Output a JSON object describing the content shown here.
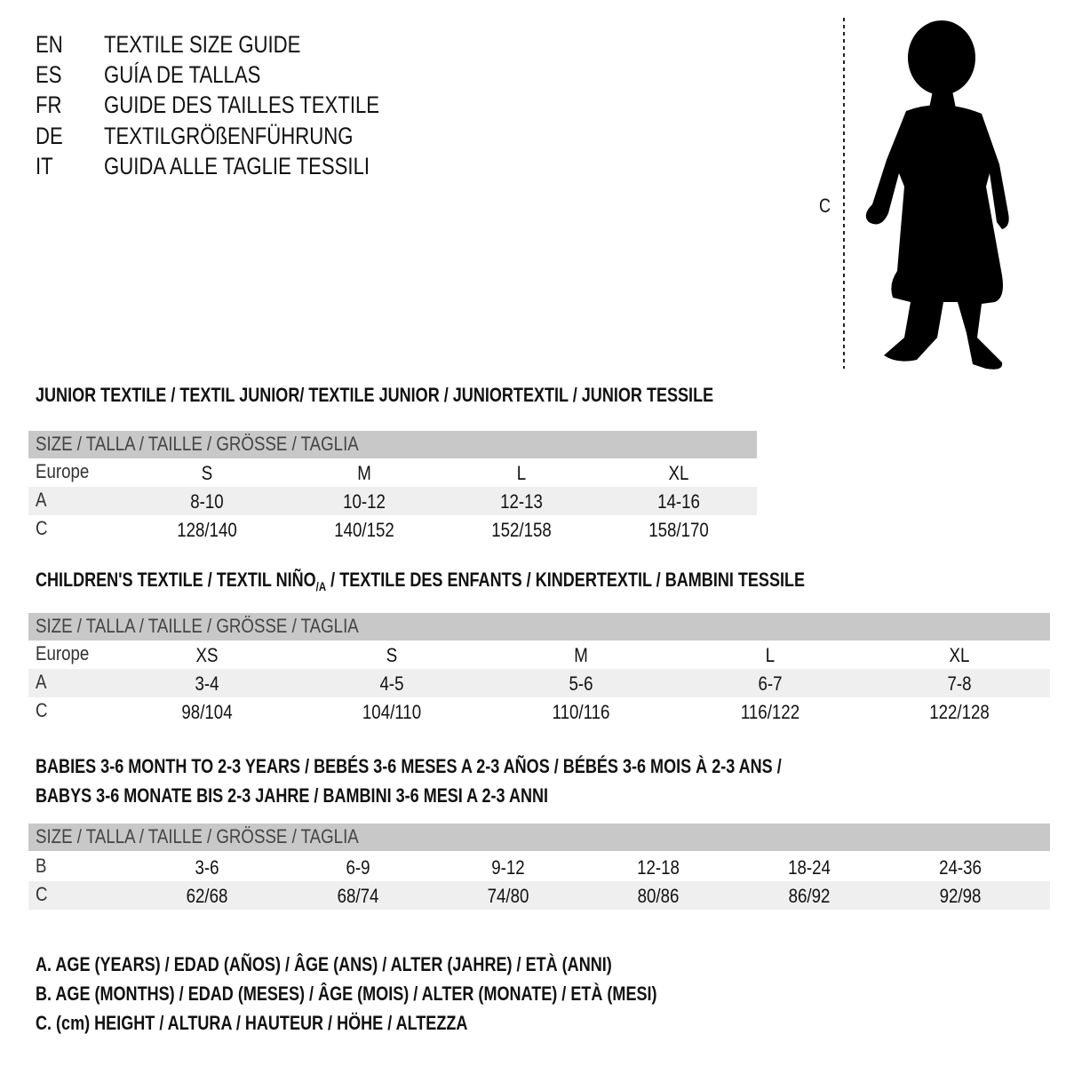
{
  "title_lines": [
    {
      "code": "EN",
      "text": "TEXTILE SIZE GUIDE"
    },
    {
      "code": "ES",
      "text": "GUÍA DE TALLAS"
    },
    {
      "code": "FR",
      "text": "GUIDE DES TAILLES TEXTILE"
    },
    {
      "code": "DE",
      "text": "TEXTILGRÖßENFÜHRUNG"
    },
    {
      "code": "IT",
      "text": "GUIDA ALLE TAGLIE TESSILI"
    }
  ],
  "figure": {
    "measure_label": "C"
  },
  "junior": {
    "heading": "JUNIOR TEXTILE / TEXTIL JUNIOR/ TEXTILE JUNIOR / JUNIORTEXTIL / JUNIOR TESSILE",
    "header": "SIZE / TALLA / TAILLE / GRÖSSE / TAGLIA",
    "rows": [
      {
        "label": "Europe",
        "values": [
          "S",
          "M",
          "L",
          "XL"
        ]
      },
      {
        "label": "A",
        "values": [
          "8-10",
          "10-12",
          "12-13",
          "14-16"
        ]
      },
      {
        "label": "C",
        "values": [
          "128/140",
          "140/152",
          "152/158",
          "158/170"
        ]
      }
    ]
  },
  "children": {
    "heading_pre": "CHILDREN'S TEXTILE / TEXTIL NIÑO",
    "heading_sub": "/A",
    "heading_post": " / TEXTILE DES ENFANTS / KINDERTEXTIL / BAMBINI TESSILE",
    "header": "SIZE / TALLA / TAILLE / GRÖSSE / TAGLIA",
    "rows": [
      {
        "label": "Europe",
        "values": [
          "XS",
          "S",
          "M",
          "L",
          "XL"
        ]
      },
      {
        "label": "A",
        "values": [
          "3-4",
          "4-5",
          "5-6",
          "6-7",
          "7-8"
        ]
      },
      {
        "label": "C",
        "values": [
          "98/104",
          "104/110",
          "110/116",
          "116/122",
          "122/128"
        ]
      }
    ]
  },
  "babies": {
    "heading_line1": "BABIES 3-6 MONTH TO 2-3 YEARS / BEBÉS 3-6 MESES A 2-3 AÑOS / BÉBÉS 3-6 MOIS À 2-3 ANS /",
    "heading_line2": "BABYS 3-6 MONATE BIS 2-3 JAHRE / BAMBINI 3-6 MESI A 2-3 ANNI",
    "header": "SIZE / TALLA / TAILLE / GRÖSSE / TAGLIA",
    "rows": [
      {
        "label": "B",
        "values": [
          "3-6",
          "6-9",
          "9-12",
          "12-18",
          "18-24",
          "24-36"
        ]
      },
      {
        "label": "C",
        "values": [
          "62/68",
          "68/74",
          "74/80",
          "80/86",
          "86/92",
          "92/98"
        ]
      }
    ]
  },
  "legend": [
    "A. AGE (YEARS) / EDAD (AÑOS) / ÂGE (ANS) / ALTER (JAHRE) / ETÀ (ANNI)",
    "B. AGE (MONTHS) / EDAD (MESES) / ÂGE (MOIS) / ALTER (MONATE) / ETÀ (MESI)",
    "C. (cm) HEIGHT / ALTURA / HAUTEUR / HÖHE / ALTEZZA"
  ],
  "colors": {
    "header_bg": "#c8c8c8",
    "shade_bg": "#efefef"
  }
}
